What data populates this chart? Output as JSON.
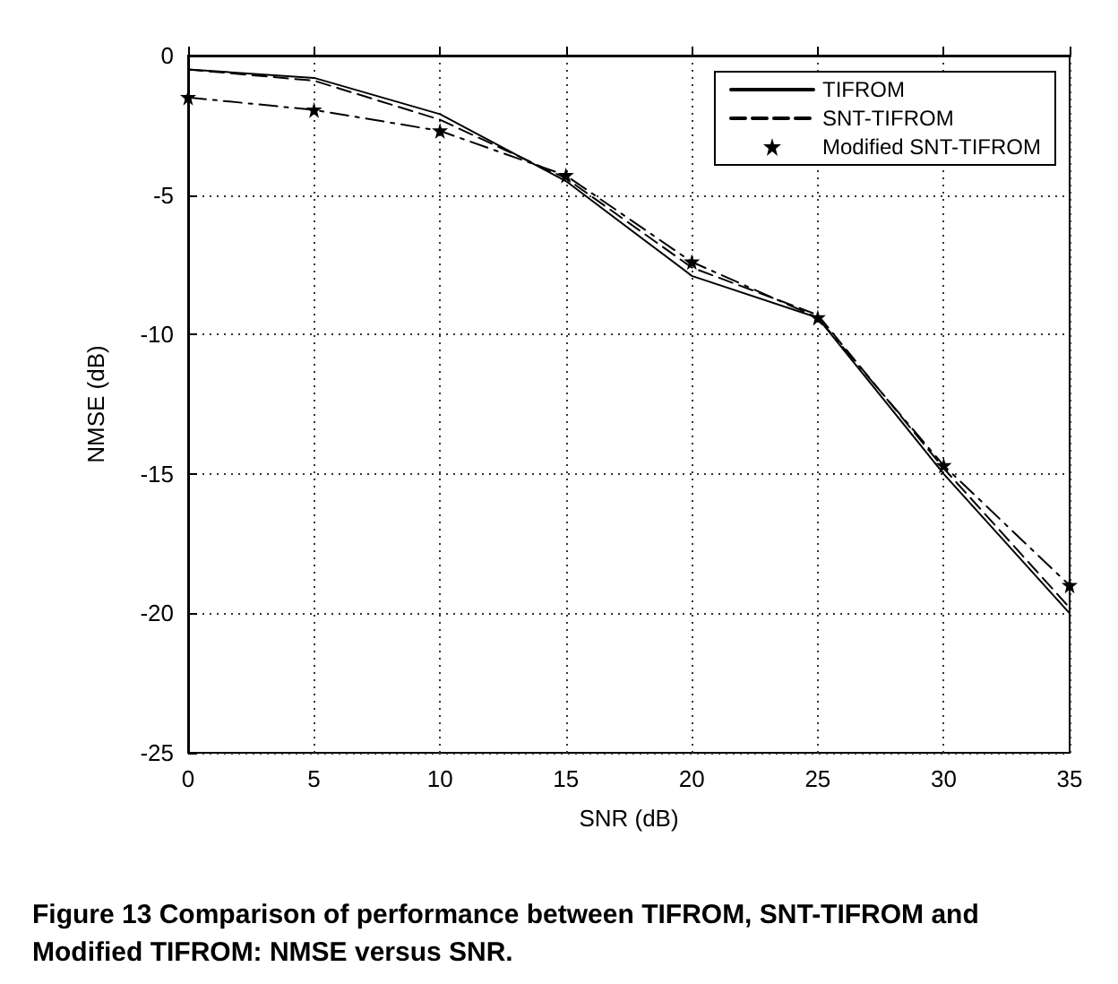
{
  "chart_data": {
    "type": "line",
    "xlabel": "SNR (dB)",
    "ylabel": "NMSE (dB)",
    "annotations": [
      "Figure 13 Comparison of performance between TIFROM, SNT-TIFROM and Modified TIFROM: NMSE versus SNR."
    ],
    "x": [
      0,
      5,
      10,
      15,
      20,
      25,
      30,
      35
    ],
    "series": [
      {
        "name": "TIFROM",
        "color": "#000000",
        "line_style": "solid",
        "marker": "none",
        "values": [
          -0.5,
          -0.8,
          -2.1,
          -4.5,
          -7.9,
          -9.4,
          -15,
          -20
        ]
      },
      {
        "name": "SNT-TIFROM",
        "color": "#000000",
        "line_style": "dashed",
        "marker": "none",
        "values": [
          -0.5,
          -0.9,
          -2.3,
          -4.4,
          -7.6,
          -9.3,
          -14.8,
          -19.8
        ]
      },
      {
        "name": "Modified SNT-TIFROM",
        "color": "#000000",
        "line_style": "dashed",
        "marker": "star",
        "values": [
          -1.5,
          -1.95,
          -2.7,
          -4.3,
          -7.4,
          -9.4,
          -14.7,
          -19
        ]
      }
    ],
    "xlim": [
      0,
      35
    ],
    "xticks": [
      0,
      5,
      10,
      15,
      20,
      25,
      30,
      35
    ],
    "ylim": [
      -25,
      0
    ],
    "yticks": [
      -25,
      -20,
      -15,
      -10,
      -5,
      0
    ],
    "grid": true,
    "legend": "top right"
  }
}
